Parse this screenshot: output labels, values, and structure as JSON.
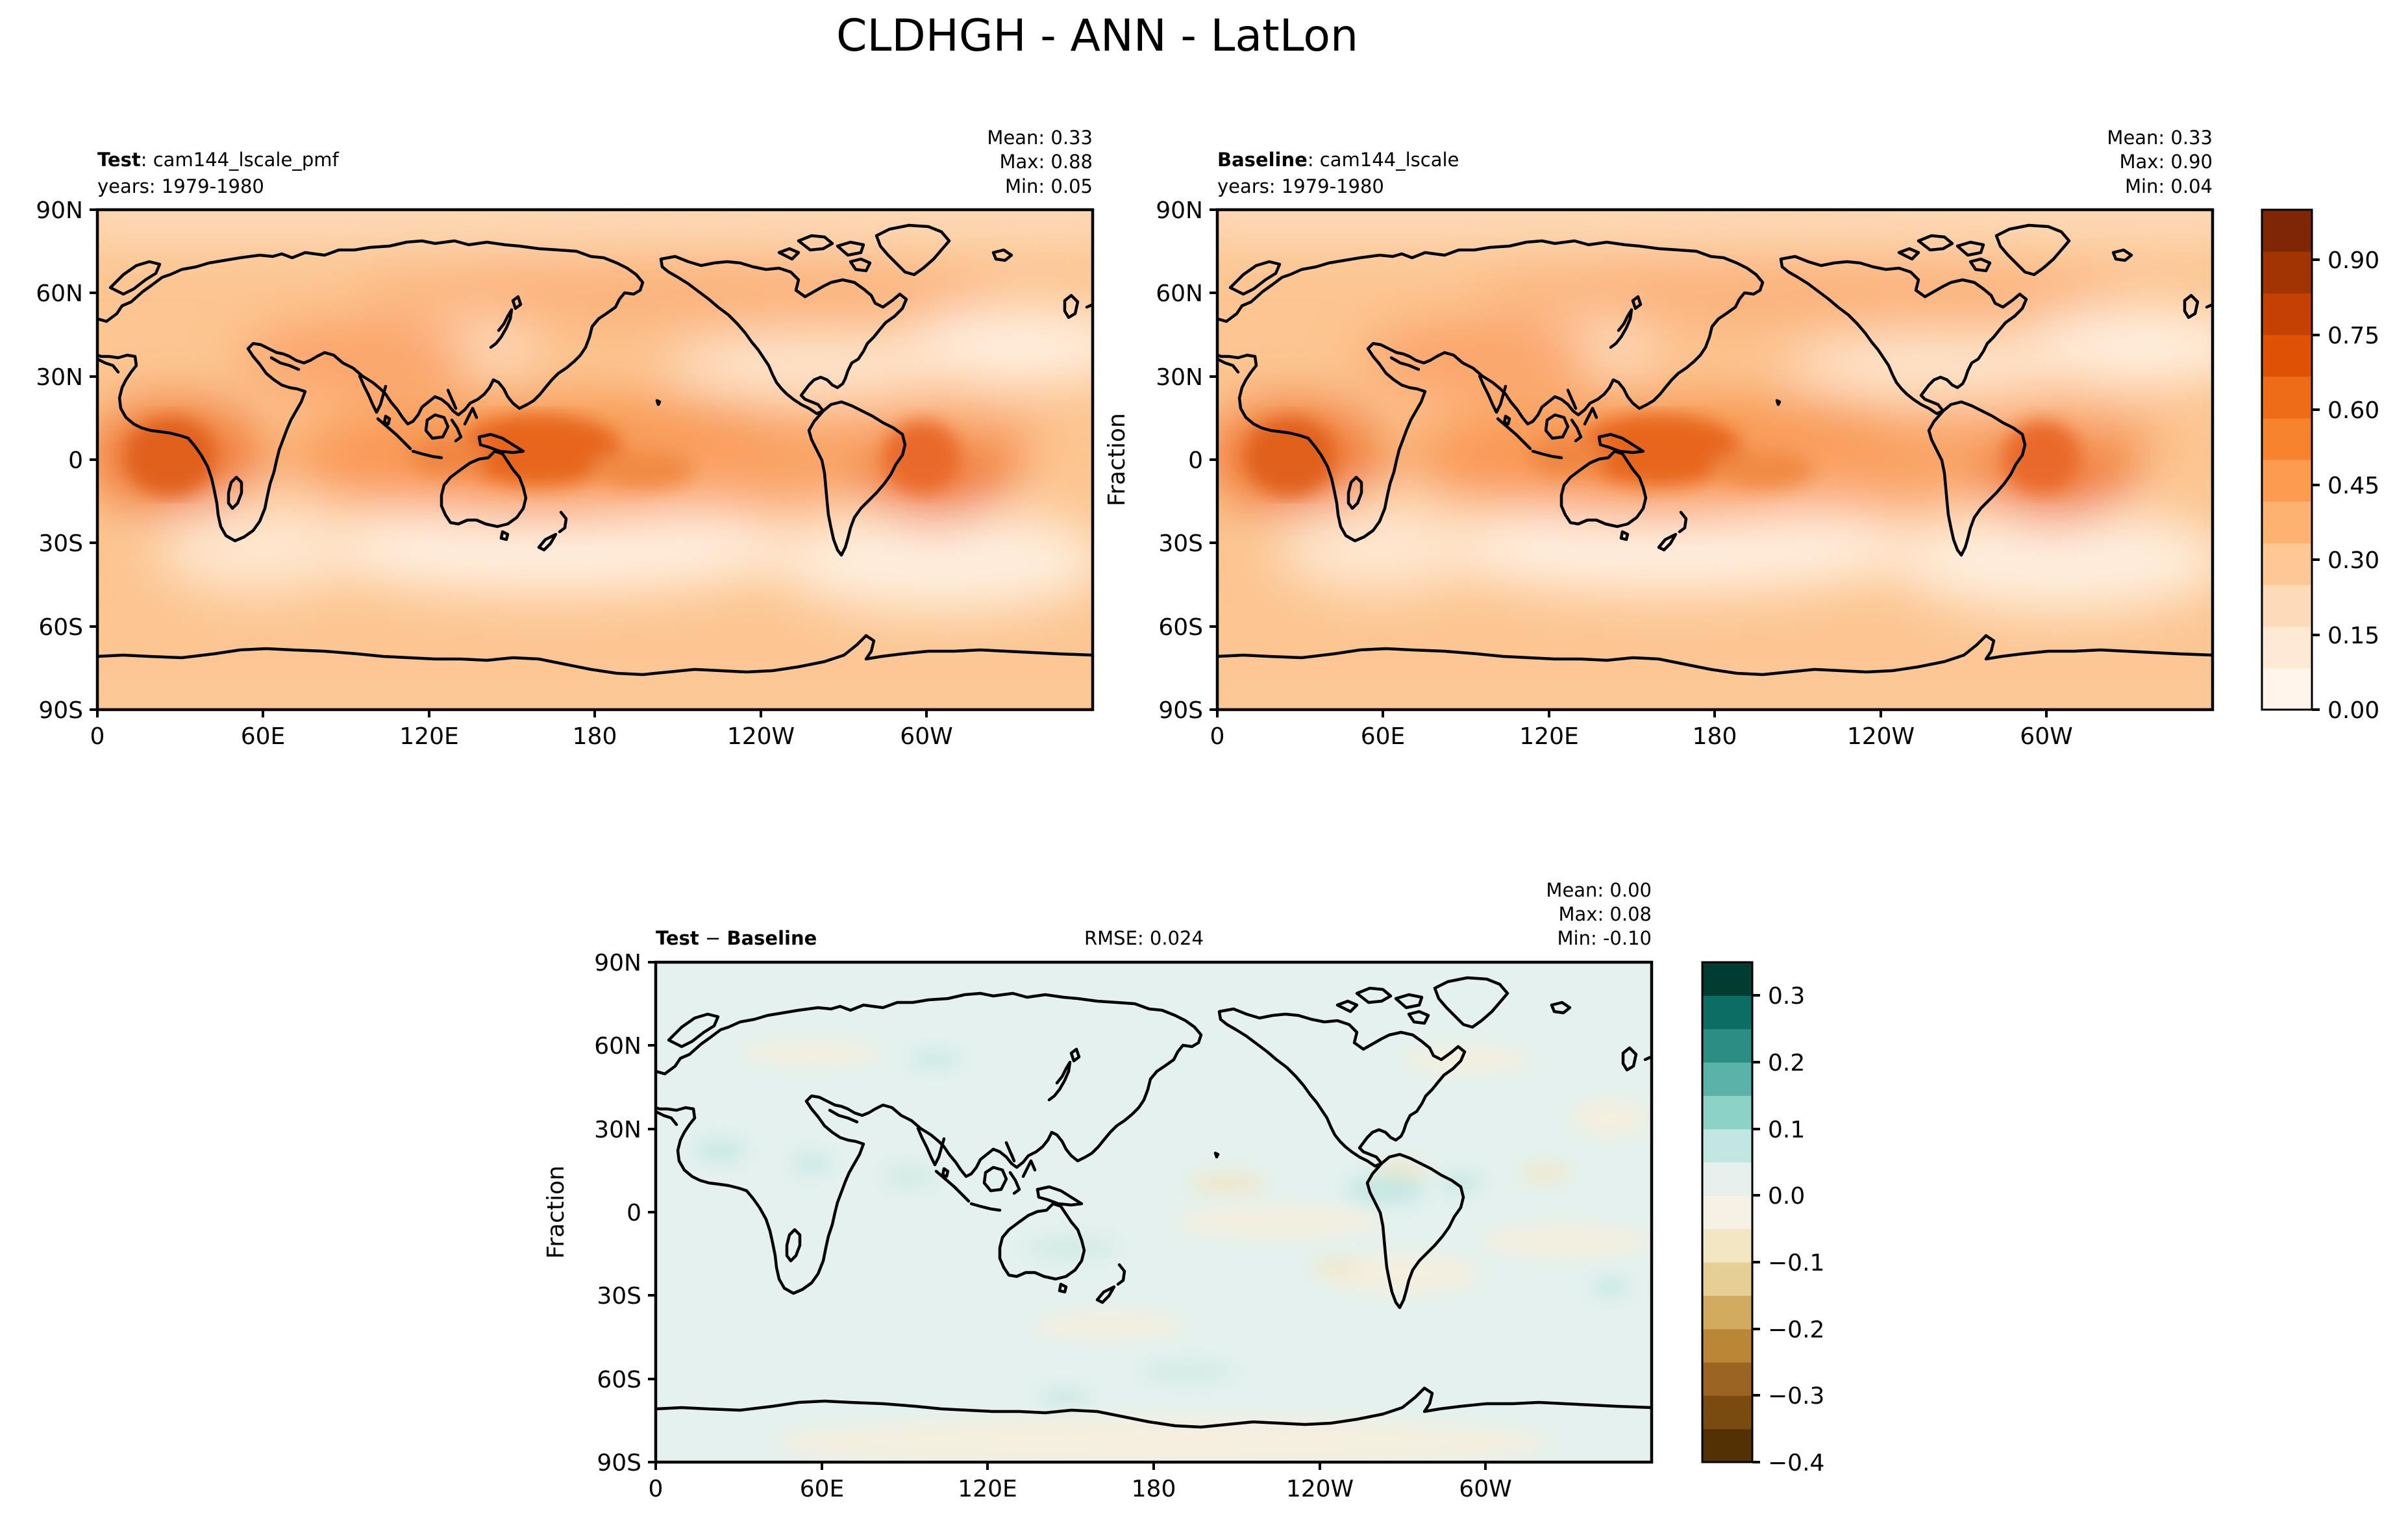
{
  "figure": {
    "title": "CLDHGH - ANN - LatLon"
  },
  "panels": [
    {
      "id": "test",
      "label_bold": "Test",
      "label_rest": ": cam144_lscale_pmf",
      "years": "years: 1979-1980",
      "stats": {
        "mean": "Mean:  0.33",
        "max": "Max:  0.88",
        "min": "Min:  0.05"
      },
      "ylabel": ""
    },
    {
      "id": "baseline",
      "label_bold": "Baseline",
      "label_rest": ": cam144_lscale",
      "years": "years: 1979-1980",
      "stats": {
        "mean": "Mean:  0.33",
        "max": "Max:  0.90",
        "min": "Min:  0.04"
      },
      "ylabel": "Fraction"
    },
    {
      "id": "diff",
      "label_bold": "Test",
      "label_mid": " − ",
      "label_bold2": "Baseline",
      "rmse": "RMSE: 0.024",
      "stats": {
        "mean": "Mean:  0.00",
        "max": "Max:  0.08",
        "min": "Min: -0.10"
      },
      "ylabel": "Fraction"
    }
  ],
  "axes": {
    "xticks": [
      "0",
      "60E",
      "120E",
      "180",
      "120W",
      "60W"
    ],
    "yticks": [
      "90N",
      "60N",
      "30N",
      "0",
      "30S",
      "60S",
      "90S"
    ]
  },
  "colorbars": {
    "main": {
      "ticks": [
        "0.00",
        "0.15",
        "0.30",
        "0.45",
        "0.60",
        "0.75",
        "0.90"
      ],
      "range": [
        0.0,
        1.0
      ],
      "colors": [
        "#fff5eb",
        "#fee9d4",
        "#fddbb8",
        "#fdc895",
        "#fdb271",
        "#fd9b50",
        "#f8832f",
        "#ee6b17",
        "#df5206",
        "#c44103",
        "#a13403",
        "#7f2704"
      ]
    },
    "diff": {
      "ticks": [
        "0.3",
        "0.2",
        "0.1",
        "0.0",
        "−0.1",
        "−0.2",
        "−0.3",
        "−0.4"
      ],
      "range": [
        -0.4,
        0.35
      ],
      "colors": [
        "#543005",
        "#7a4b10",
        "#9c6422",
        "#bb8736",
        "#d2ab61",
        "#e6cf95",
        "#f3e6c3",
        "#f5f1e4",
        "#e6f1ee",
        "#c2e7e3",
        "#8dd2c6",
        "#5ab2a8",
        "#2c8d85",
        "#0c6d64",
        "#003c30"
      ]
    }
  },
  "map_colors": {
    "ocean_base": "#fcc18f",
    "diff_base": "#e4f1ee",
    "coast": "#000000"
  },
  "map_data": {
    "description": "cloud fraction field, values read from colour",
    "cam144_lscale_pmf": {
      "mean": 0.33,
      "max": 0.88,
      "min": 0.05
    },
    "cam144_lscale": {
      "mean": 0.33,
      "max": 0.9,
      "min": 0.04
    },
    "difference": {
      "mean": 0.0,
      "max": 0.08,
      "min": -0.1,
      "rmse": 0.024
    }
  }
}
